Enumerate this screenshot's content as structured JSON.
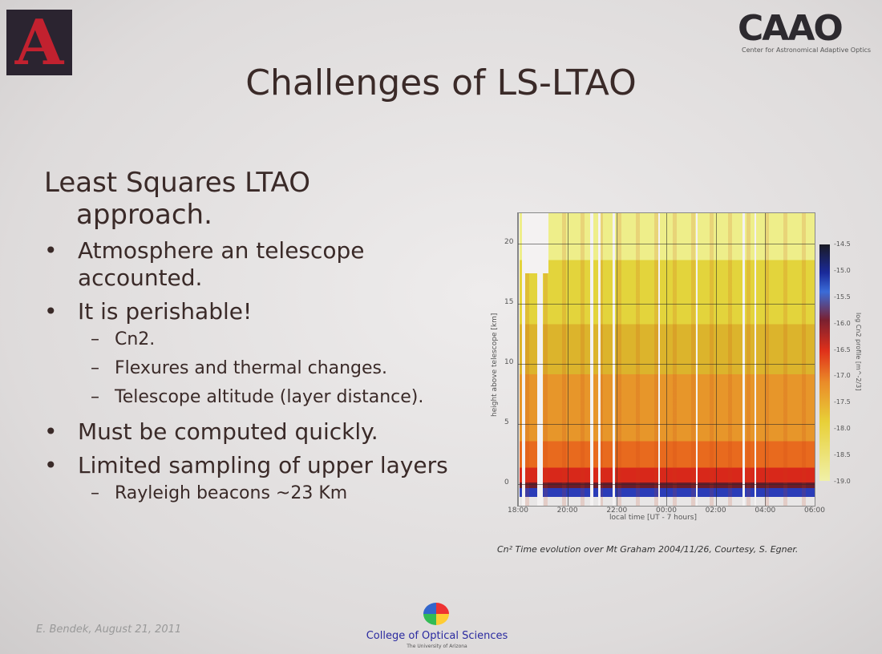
{
  "header": {
    "logo_left": "A",
    "logo_right": "CAAO",
    "logo_right_subtitle": "Center for Astronomical Adaptive Optics",
    "title": "Challenges of LS-LTAO"
  },
  "content": {
    "heading_line1": "Least Squares LTAO",
    "heading_line2": "approach.",
    "bullets": [
      {
        "lines": [
          "Atmosphere an telescope",
          "accounted."
        ],
        "sub": []
      },
      {
        "lines": [
          "It is perishable!"
        ],
        "sub": [
          "Cn2.",
          "Flexures and thermal changes.",
          "Telescope altitude (layer distance)."
        ]
      },
      {
        "lines": [
          "Must be computed quickly."
        ],
        "sub": []
      },
      {
        "lines": [
          "Limited sampling of upper layers"
        ],
        "sub": [
          "Rayleigh beacons ~23 Km"
        ]
      }
    ]
  },
  "figure": {
    "y_ticks": [
      "0",
      "5",
      "10",
      "15",
      "20"
    ],
    "x_ticks": [
      "18:00",
      "20:00",
      "22:00",
      "00:00",
      "02:00",
      "04:00",
      "06:00"
    ],
    "x_label": "local time [UT - 7 hours]",
    "y_label": "height above telescope [km]",
    "colorbar_ticks": [
      "-14.5",
      "-15.0",
      "-15.5",
      "-16.0",
      "-16.5",
      "-17.0",
      "-17.5",
      "-18.0",
      "-18.5",
      "-19.0"
    ],
    "colorbar_label": "log Cn2 profile [m^-2/3]",
    "caption": "Cn² Time evolution over Mt Graham 2004/11/26, Courtesy, S. Egner."
  },
  "footer": {
    "author_date": "E. Bendek, August 21, 2011",
    "institution": "College of Optical Sciences",
    "institution_sub": "The University of Arizona"
  }
}
